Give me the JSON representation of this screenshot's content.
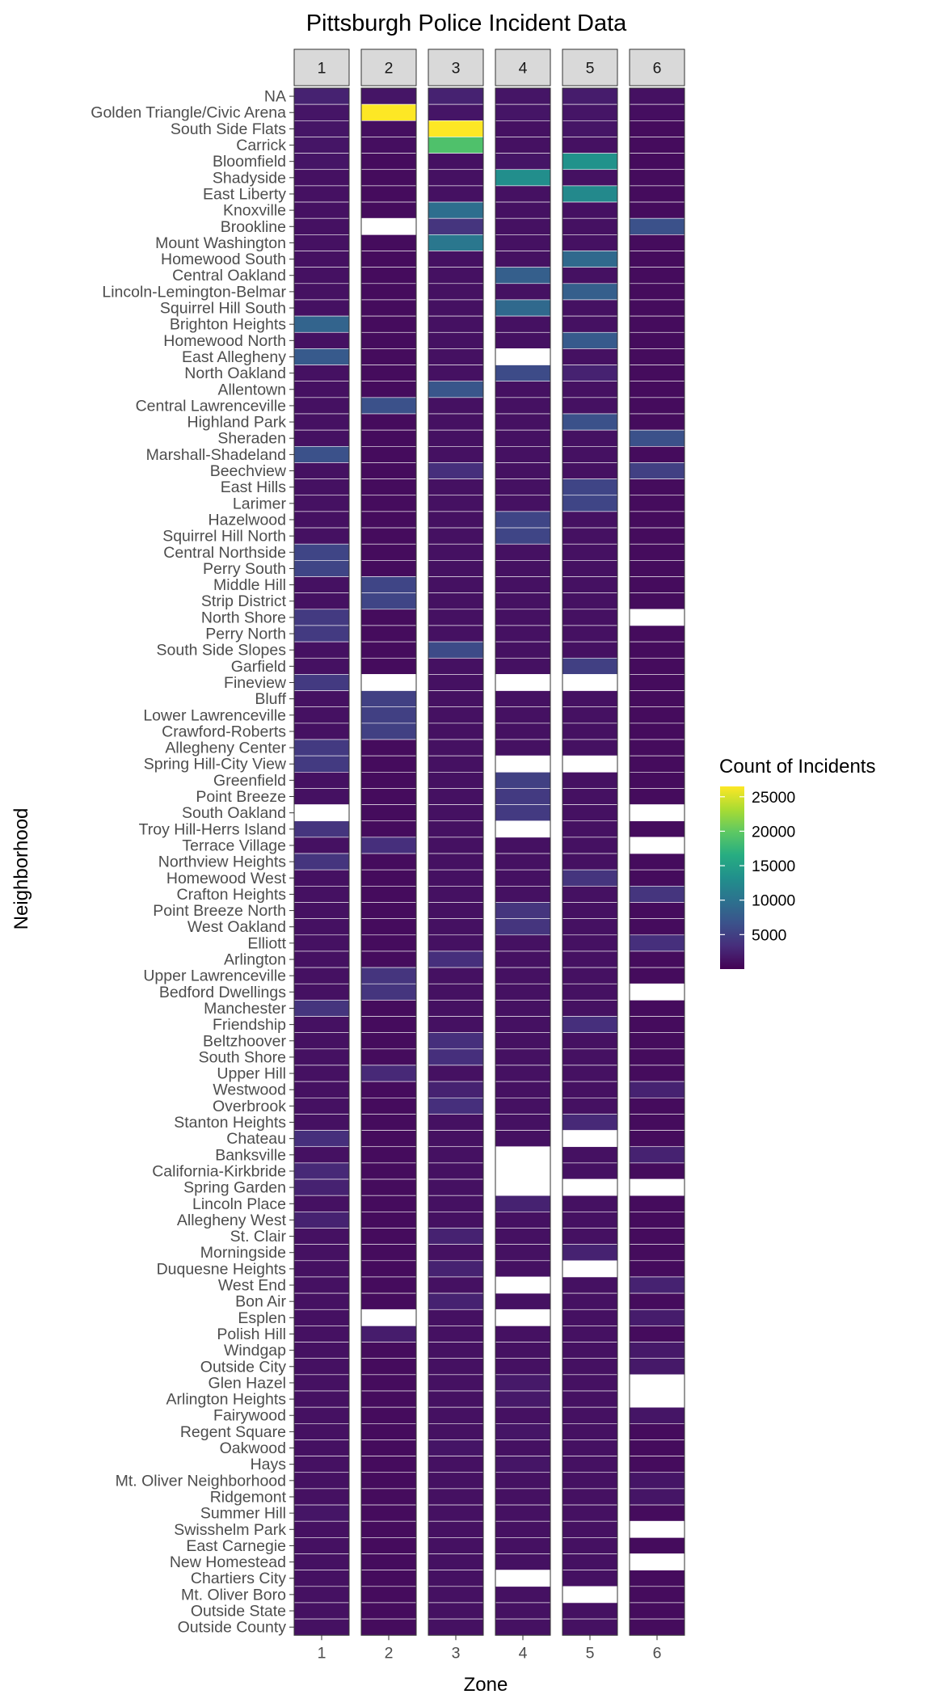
{
  "chart_data": {
    "type": "heatmap",
    "title": "Pittsburgh Police Incident Data",
    "xlabel": "Zone",
    "ylabel": "Neighborhood",
    "facets": [
      "1",
      "2",
      "3",
      "4",
      "5",
      "6"
    ],
    "x_tick": [
      "1",
      "2",
      "3",
      "4",
      "5",
      "6"
    ],
    "legend": {
      "title": "Count of Incidents",
      "ticks": [
        5000,
        10000,
        15000,
        20000,
        25000
      ],
      "min": 0,
      "max": 26500,
      "placement": "right"
    },
    "neighborhoods": [
      "NA",
      "Golden Triangle/Civic Arena",
      "South Side Flats",
      "Carrick",
      "Bloomfield",
      "Shadyside",
      "East Liberty",
      "Knoxville",
      "Brookline",
      "Mount Washington",
      "Homewood South",
      "Central Oakland",
      "Lincoln-Lemington-Belmar",
      "Squirrel Hill South",
      "Brighton Heights",
      "Homewood North",
      "East Allegheny",
      "North Oakland",
      "Allentown",
      "Central Lawrenceville",
      "Highland Park",
      "Sheraden",
      "Marshall-Shadeland",
      "Beechview",
      "East Hills",
      "Larimer",
      "Hazelwood",
      "Squirrel Hill North",
      "Central Northside",
      "Perry South",
      "Middle Hill",
      "Strip District",
      "North Shore",
      "Perry North",
      "South Side Slopes",
      "Garfield",
      "Fineview",
      "Bluff",
      "Lower Lawrenceville",
      "Crawford-Roberts",
      "Allegheny Center",
      "Spring Hill-City View",
      "Greenfield",
      "Point Breeze",
      "South Oakland",
      "Troy Hill-Herrs Island",
      "Terrace Village",
      "Northview Heights",
      "Homewood West",
      "Crafton Heights",
      "Point Breeze North",
      "West Oakland",
      "Elliott",
      "Arlington",
      "Upper Lawrenceville",
      "Bedford Dwellings",
      "Manchester",
      "Friendship",
      "Beltzhoover",
      "South Shore",
      "Upper Hill",
      "Westwood",
      "Overbrook",
      "Stanton Heights",
      "Chateau",
      "Banksville",
      "California-Kirkbride",
      "Spring Garden",
      "Lincoln Place",
      "Allegheny West",
      "St. Clair",
      "Morningside",
      "Duquesne Heights",
      "West End",
      "Bon Air",
      "Esplen",
      "Polish Hill",
      "Windgap",
      "Outside City",
      "Glen Hazel",
      "Arlington Heights",
      "Fairywood",
      "Regent Square",
      "Oakwood",
      "Hays",
      "Mt. Oliver Neighborhood",
      "Ridgemont",
      "Summer Hill",
      "Swisshelm Park",
      "East Carnegie",
      "New Homestead",
      "Chartiers City",
      "Mt. Oliver Boro",
      "Outside State",
      "Outside County"
    ],
    "values": [
      [
        2500,
        1500,
        2500,
        1500,
        2000,
        1200
      ],
      [
        1500,
        26500,
        1500,
        1500,
        1500,
        1000
      ],
      [
        1500,
        1000,
        26500,
        1200,
        1500,
        800
      ],
      [
        1500,
        1000,
        19000,
        1200,
        1200,
        800
      ],
      [
        1500,
        800,
        1200,
        1500,
        13500,
        800
      ],
      [
        1200,
        800,
        1200,
        13000,
        1200,
        800
      ],
      [
        1200,
        800,
        1200,
        1200,
        12500,
        800
      ],
      [
        1200,
        800,
        9500,
        1200,
        1200,
        800
      ],
      [
        1200,
        null,
        4000,
        1200,
        1200,
        6500
      ],
      [
        1200,
        800,
        10500,
        1200,
        1200,
        800
      ],
      [
        1200,
        800,
        1200,
        1200,
        9000,
        800
      ],
      [
        1200,
        800,
        1200,
        8000,
        1200,
        800
      ],
      [
        1200,
        800,
        1200,
        1200,
        8000,
        800
      ],
      [
        1200,
        800,
        1200,
        9000,
        1200,
        800
      ],
      [
        8500,
        800,
        1200,
        1200,
        1200,
        800
      ],
      [
        1200,
        800,
        1200,
        1200,
        7500,
        800
      ],
      [
        7500,
        800,
        1200,
        null,
        1200,
        800
      ],
      [
        1200,
        800,
        1200,
        6000,
        2500,
        800
      ],
      [
        1200,
        800,
        7000,
        1200,
        1200,
        800
      ],
      [
        1200,
        6500,
        1200,
        1200,
        1200,
        800
      ],
      [
        1200,
        800,
        1200,
        1200,
        6500,
        800
      ],
      [
        1200,
        800,
        1200,
        1200,
        1200,
        6500
      ],
      [
        6500,
        800,
        1200,
        1200,
        1200,
        800
      ],
      [
        1200,
        800,
        3500,
        1200,
        1200,
        5000
      ],
      [
        1200,
        800,
        1200,
        1200,
        5500,
        800
      ],
      [
        1200,
        800,
        1200,
        1200,
        5500,
        800
      ],
      [
        1200,
        800,
        1200,
        5500,
        1200,
        800
      ],
      [
        1200,
        800,
        1200,
        5500,
        1200,
        800
      ],
      [
        5500,
        800,
        1200,
        1200,
        1200,
        800
      ],
      [
        5500,
        800,
        1200,
        1200,
        1200,
        800
      ],
      [
        1200,
        5500,
        1200,
        1200,
        1200,
        800
      ],
      [
        1200,
        5500,
        1200,
        1200,
        1200,
        800
      ],
      [
        4500,
        800,
        1200,
        1200,
        1200,
        null
      ],
      [
        4500,
        800,
        1200,
        1200,
        1200,
        800
      ],
      [
        1200,
        800,
        6000,
        1200,
        1200,
        800
      ],
      [
        1200,
        800,
        1200,
        1200,
        5000,
        800
      ],
      [
        4500,
        null,
        1200,
        null,
        null,
        800
      ],
      [
        1200,
        5000,
        1200,
        1200,
        1200,
        800
      ],
      [
        1200,
        5000,
        1200,
        1200,
        1200,
        800
      ],
      [
        1200,
        5000,
        1200,
        1200,
        1200,
        800
      ],
      [
        4500,
        800,
        1200,
        1200,
        1200,
        800
      ],
      [
        4500,
        800,
        1200,
        null,
        null,
        800
      ],
      [
        1200,
        800,
        1200,
        5000,
        1200,
        800
      ],
      [
        1200,
        800,
        1200,
        4500,
        1200,
        800
      ],
      [
        null,
        800,
        1200,
        4500,
        1200,
        null
      ],
      [
        4000,
        800,
        1200,
        null,
        1200,
        800
      ],
      [
        1200,
        3500,
        1200,
        1200,
        1200,
        null
      ],
      [
        4000,
        800,
        1200,
        1200,
        1200,
        800
      ],
      [
        1200,
        800,
        1200,
        1200,
        4000,
        800
      ],
      [
        1200,
        800,
        1200,
        1200,
        1200,
        4000
      ],
      [
        1200,
        800,
        1200,
        4000,
        1200,
        800
      ],
      [
        1200,
        800,
        1200,
        4000,
        1200,
        800
      ],
      [
        1200,
        800,
        1200,
        1200,
        1200,
        3500
      ],
      [
        1200,
        800,
        3500,
        1200,
        1200,
        800
      ],
      [
        1200,
        4000,
        1200,
        1200,
        1200,
        800
      ],
      [
        1200,
        4000,
        1200,
        1200,
        1200,
        null
      ],
      [
        4000,
        800,
        1200,
        1200,
        1200,
        800
      ],
      [
        1200,
        800,
        1200,
        1200,
        3500,
        800
      ],
      [
        1200,
        800,
        3500,
        1200,
        1200,
        800
      ],
      [
        1200,
        800,
        3500,
        1200,
        1200,
        800
      ],
      [
        1200,
        3000,
        1200,
        1200,
        1200,
        800
      ],
      [
        1200,
        800,
        2500,
        1200,
        1200,
        2500
      ],
      [
        1200,
        800,
        3500,
        1200,
        1200,
        800
      ],
      [
        1200,
        800,
        1200,
        1200,
        3000,
        800
      ],
      [
        3500,
        800,
        1200,
        1200,
        null,
        800
      ],
      [
        1200,
        800,
        1200,
        null,
        1200,
        2500
      ],
      [
        3000,
        800,
        1200,
        null,
        1200,
        800
      ],
      [
        2500,
        800,
        1200,
        null,
        null,
        null
      ],
      [
        1200,
        800,
        1200,
        2500,
        1200,
        800
      ],
      [
        2500,
        800,
        1200,
        1200,
        1200,
        800
      ],
      [
        1200,
        800,
        2500,
        1200,
        1200,
        800
      ],
      [
        1200,
        800,
        1200,
        1200,
        2500,
        800
      ],
      [
        1200,
        800,
        2500,
        1200,
        null,
        800
      ],
      [
        1200,
        800,
        1200,
        null,
        1200,
        2500
      ],
      [
        1200,
        800,
        2500,
        1200,
        1200,
        800
      ],
      [
        1200,
        null,
        1200,
        null,
        1200,
        2000
      ],
      [
        1200,
        2000,
        1200,
        1200,
        1200,
        800
      ],
      [
        1200,
        800,
        1200,
        1200,
        1200,
        1800
      ],
      [
        1200,
        800,
        1200,
        1200,
        1200,
        1800
      ],
      [
        1200,
        800,
        1200,
        1800,
        1200,
        null
      ],
      [
        1200,
        800,
        1200,
        1800,
        1200,
        null
      ],
      [
        1200,
        800,
        1200,
        1200,
        1200,
        1500
      ],
      [
        1200,
        800,
        1200,
        1500,
        1200,
        800
      ],
      [
        1200,
        800,
        1500,
        1200,
        1200,
        800
      ],
      [
        1200,
        800,
        1200,
        1500,
        1200,
        800
      ],
      [
        1200,
        800,
        1200,
        1200,
        1200,
        1500
      ],
      [
        1200,
        800,
        1200,
        1200,
        1200,
        1500
      ],
      [
        1500,
        800,
        1200,
        1200,
        1200,
        800
      ],
      [
        1200,
        800,
        1200,
        1200,
        1200,
        null
      ],
      [
        1200,
        800,
        1200,
        1200,
        1200,
        800
      ],
      [
        1200,
        800,
        1200,
        1200,
        1200,
        null
      ],
      [
        1200,
        800,
        1200,
        null,
        1200,
        800
      ],
      [
        1200,
        800,
        1200,
        1200,
        null,
        800
      ],
      [
        1200,
        800,
        1200,
        1200,
        1200,
        800
      ],
      [
        1200,
        800,
        1200,
        1200,
        1200,
        800
      ]
    ]
  }
}
